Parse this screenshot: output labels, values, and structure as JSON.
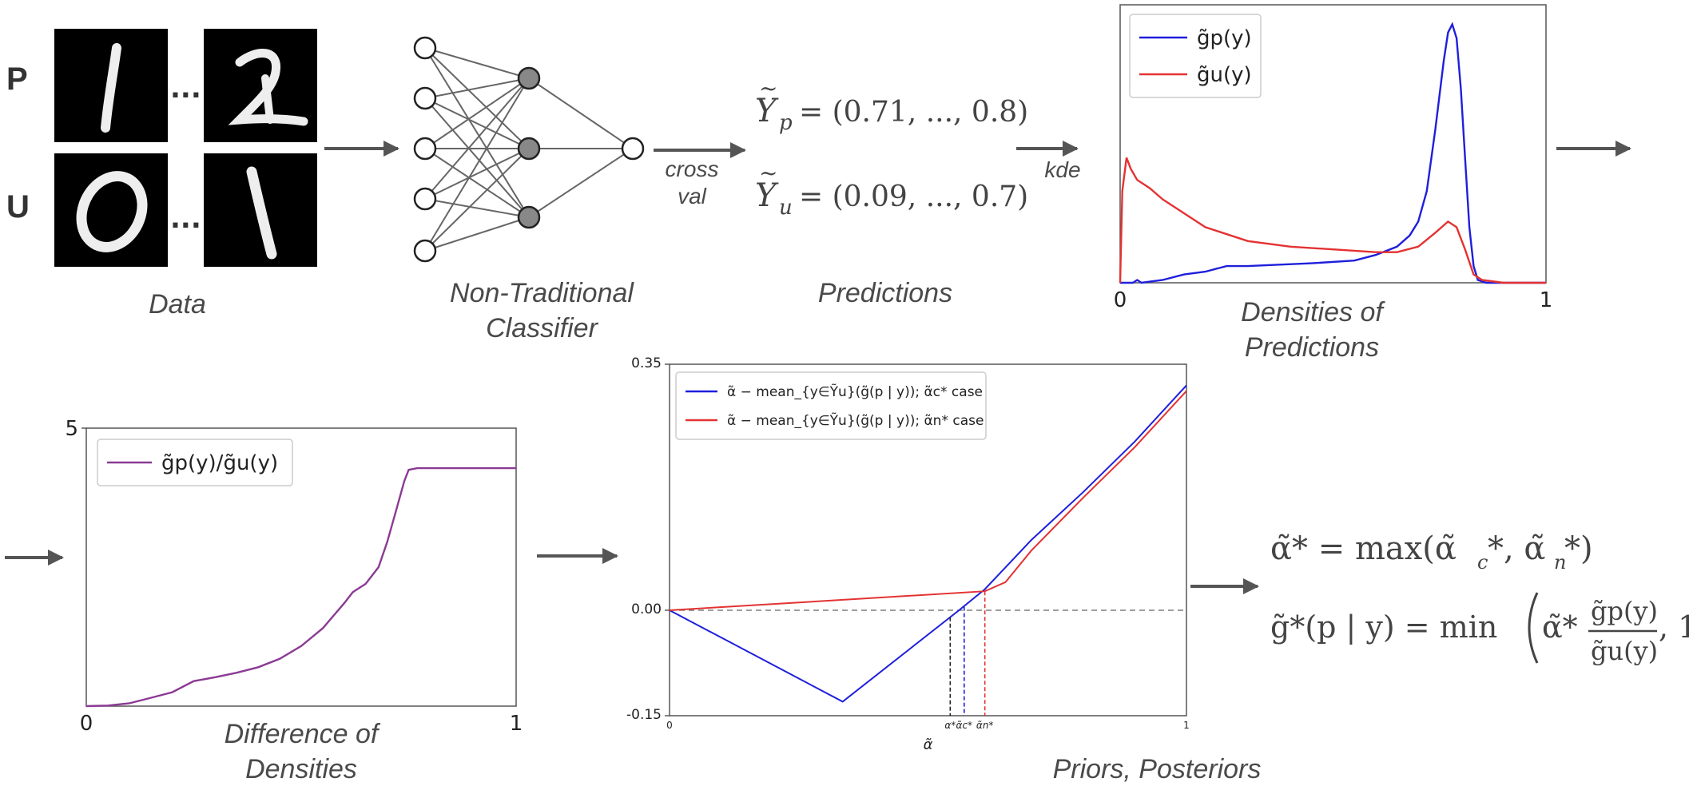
{
  "labels": {
    "p_row": "P",
    "u_row": "U",
    "ellipsis": "...",
    "data": "Data",
    "classifier_line1": "Non-Traditional",
    "classifier_line2": "Classifier",
    "cross_line1": "cross",
    "cross_line2": "val",
    "predictions": "Predictions",
    "kde": "kde",
    "densities_line1": "Densities of",
    "densities_line2": "Predictions",
    "difference_line1": "Difference of",
    "difference_line2": "Densities",
    "priors": "Priors, Posteriors"
  },
  "equations": {
    "yp_sub": "p",
    "yp_vals": "= (0.71, ..., 0.8)",
    "yu_sub": "u",
    "yu_vals": "= (0.09, ..., 0.7)",
    "alpha_lhs": "α̃* = max(α̃",
    "alpha_c": "c",
    "alpha_mid": "*, α̃",
    "alpha_n": "n",
    "alpha_end": "*)",
    "g_lhs": "g̃*(p | y) = min",
    "g_alpha": "α̃*",
    "g_num": "g̃p(y)",
    "g_den": "g̃u(y)",
    "g_tail": ", 1"
  },
  "colors": {
    "blue": "#1f1fdd",
    "red": "#e43232",
    "purple": "#8b3a94",
    "arrow": "#555555",
    "filled_node": "#888888",
    "digit_bg": "#000000"
  },
  "chart_data": [
    {
      "id": "densities",
      "type": "line",
      "xlim": [
        0,
        1
      ],
      "ylim": [
        0,
        1
      ],
      "x_ticks": [
        "0",
        "1"
      ],
      "legend_placement": "top-left",
      "series": [
        {
          "name": "g̃p(y)",
          "color": "#1f1fdd",
          "points": [
            [
              0,
              0
            ],
            [
              0.03,
              0
            ],
            [
              0.04,
              0.01
            ],
            [
              0.05,
              0
            ],
            [
              0.1,
              0.01
            ],
            [
              0.15,
              0.03
            ],
            [
              0.2,
              0.04
            ],
            [
              0.25,
              0.06
            ],
            [
              0.3,
              0.06
            ],
            [
              0.45,
              0.07
            ],
            [
              0.55,
              0.08
            ],
            [
              0.6,
              0.1
            ],
            [
              0.65,
              0.13
            ],
            [
              0.68,
              0.17
            ],
            [
              0.7,
              0.22
            ],
            [
              0.72,
              0.33
            ],
            [
              0.74,
              0.55
            ],
            [
              0.76,
              0.8
            ],
            [
              0.77,
              0.9
            ],
            [
              0.78,
              0.93
            ],
            [
              0.79,
              0.88
            ],
            [
              0.8,
              0.7
            ],
            [
              0.81,
              0.45
            ],
            [
              0.82,
              0.2
            ],
            [
              0.83,
              0.06
            ],
            [
              0.84,
              0.01
            ],
            [
              0.86,
              0
            ],
            [
              1,
              0
            ]
          ]
        },
        {
          "name": "g̃u(y)",
          "color": "#e43232",
          "points": [
            [
              0,
              0
            ],
            [
              0.005,
              0.33
            ],
            [
              0.015,
              0.45
            ],
            [
              0.025,
              0.41
            ],
            [
              0.04,
              0.37
            ],
            [
              0.07,
              0.34
            ],
            [
              0.1,
              0.3
            ],
            [
              0.15,
              0.25
            ],
            [
              0.2,
              0.2
            ],
            [
              0.3,
              0.15
            ],
            [
              0.4,
              0.13
            ],
            [
              0.5,
              0.12
            ],
            [
              0.6,
              0.11
            ],
            [
              0.65,
              0.11
            ],
            [
              0.7,
              0.13
            ],
            [
              0.74,
              0.18
            ],
            [
              0.77,
              0.22
            ],
            [
              0.79,
              0.2
            ],
            [
              0.81,
              0.12
            ],
            [
              0.83,
              0.03
            ],
            [
              0.85,
              0.01
            ],
            [
              0.9,
              0
            ],
            [
              1,
              0
            ]
          ]
        }
      ]
    },
    {
      "id": "difference",
      "type": "line",
      "xlim": [
        0,
        1
      ],
      "ylim": [
        0,
        5
      ],
      "x_ticks": [
        "0",
        "1"
      ],
      "y_ticks": [
        "5"
      ],
      "legend_placement": "top-left",
      "series": [
        {
          "name": "g̃p(y)/g̃u(y)",
          "color": "#8b3a94",
          "points": [
            [
              0,
              0
            ],
            [
              0.05,
              0.01
            ],
            [
              0.1,
              0.05
            ],
            [
              0.15,
              0.15
            ],
            [
              0.2,
              0.25
            ],
            [
              0.25,
              0.45
            ],
            [
              0.3,
              0.52
            ],
            [
              0.35,
              0.6
            ],
            [
              0.4,
              0.7
            ],
            [
              0.45,
              0.85
            ],
            [
              0.5,
              1.08
            ],
            [
              0.55,
              1.4
            ],
            [
              0.6,
              1.85
            ],
            [
              0.62,
              2.05
            ],
            [
              0.65,
              2.2
            ],
            [
              0.68,
              2.5
            ],
            [
              0.7,
              2.95
            ],
            [
              0.72,
              3.5
            ],
            [
              0.74,
              4.05
            ],
            [
              0.75,
              4.25
            ],
            [
              0.77,
              4.28
            ],
            [
              1,
              4.28
            ]
          ]
        }
      ]
    },
    {
      "id": "priors",
      "type": "line",
      "xlim": [
        0,
        1
      ],
      "ylim": [
        -0.15,
        0.35
      ],
      "x_ticks": [
        "0",
        "1"
      ],
      "y_ticks": [
        "0.35",
        "0.00",
        "-0.15"
      ],
      "xlabel": "α̃",
      "legend_placement": "top-left",
      "zero_line": true,
      "series": [
        {
          "name": "α̃ − mean_{y∈Ỹu}(g̃(p | y)); α̃c* case",
          "color": "#1f1fdd",
          "points": [
            [
              0,
              0
            ],
            [
              0.335,
              -0.13
            ],
            [
              0.56,
              0.0
            ],
            [
              0.61,
              0.03
            ],
            [
              0.7,
              0.1
            ],
            [
              0.8,
              0.168
            ],
            [
              0.9,
              0.24
            ],
            [
              1,
              0.32
            ]
          ]
        },
        {
          "name": "α̃ − mean_{y∈Ỹu}(g̃(p | y)); α̃n* case",
          "color": "#e43232",
          "points": [
            [
              0,
              0
            ],
            [
              0.61,
              0.027
            ],
            [
              0.65,
              0.04
            ],
            [
              0.7,
              0.085
            ],
            [
              0.8,
              0.16
            ],
            [
              0.9,
              0.232
            ],
            [
              1,
              0.312
            ]
          ]
        }
      ],
      "markers": [
        {
          "label": "α*",
          "x": 0.543,
          "y": -0.01,
          "color": "#222222"
        },
        {
          "label": "α̃c*",
          "x": 0.57,
          "y": 0.005,
          "color": "#1f1fdd"
        },
        {
          "label": "α̃n*",
          "x": 0.61,
          "y": 0.027,
          "color": "#e43232"
        }
      ]
    }
  ]
}
